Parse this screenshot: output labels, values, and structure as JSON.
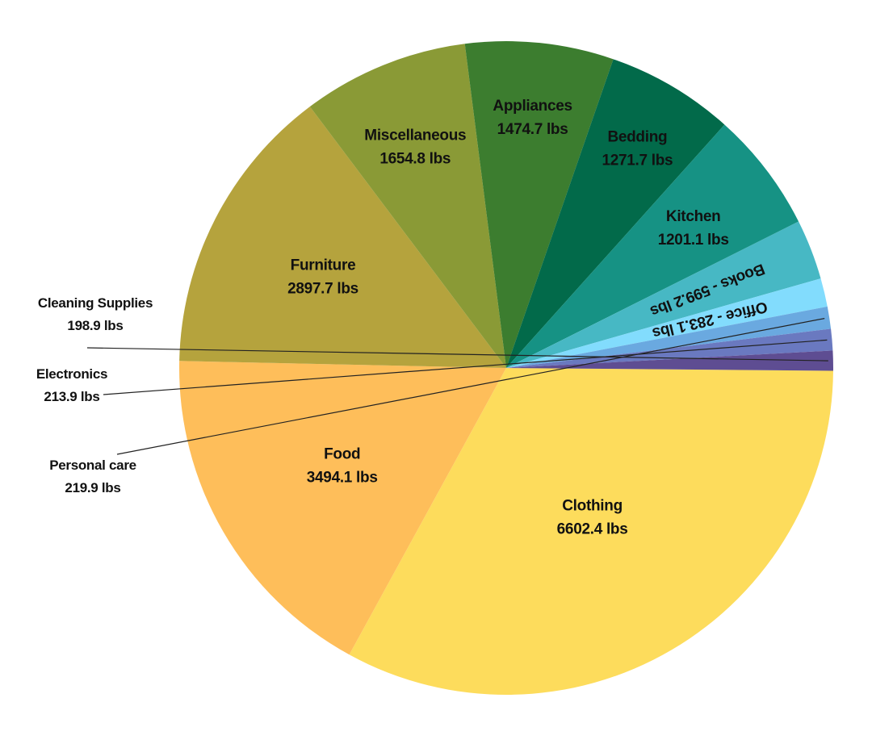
{
  "chart_data": {
    "type": "pie",
    "title": "",
    "unit": "lbs",
    "start_angle_deg": 90.5,
    "direction": "clockwise",
    "slices": [
      {
        "name": "Clothing",
        "value": 6602.4,
        "value_label": "6602.4 lbs",
        "color": "#FDDC5C",
        "label_style": "inside"
      },
      {
        "name": "Food",
        "value": 3494.1,
        "value_label": "3494.1 lbs",
        "color": "#FEBE5A",
        "label_style": "inside"
      },
      {
        "name": "Furniture",
        "value": 2897.7,
        "value_label": "2897.7 lbs",
        "color": "#B5A33D",
        "label_style": "inside"
      },
      {
        "name": "Miscellaneous",
        "value": 1654.8,
        "value_label": "1654.8 lbs",
        "color": "#8A9A36",
        "label_style": "inside"
      },
      {
        "name": "Appliances",
        "value": 1474.7,
        "value_label": "1474.7 lbs",
        "color": "#3C7D2F",
        "label_style": "inside"
      },
      {
        "name": "Bedding",
        "value": 1271.7,
        "value_label": "1271.7 lbs",
        "color": "#026A4A",
        "label_style": "inside"
      },
      {
        "name": "Kitchen",
        "value": 1201.1,
        "value_label": "1201.1 lbs",
        "color": "#169284",
        "label_style": "inside"
      },
      {
        "name": "Books",
        "value": 599.2,
        "value_label": "Books - 599.2 lbs",
        "color": "#47B8C4",
        "label_style": "rotated"
      },
      {
        "name": "Office",
        "value": 283.1,
        "value_label": "Office - 283.1 lbs",
        "color": "#82DCFD",
        "label_style": "rotated"
      },
      {
        "name": "Personal care",
        "value": 219.9,
        "value_label": "219.9 lbs",
        "color": "#6AA9E0",
        "label_style": "outside"
      },
      {
        "name": "Electronics",
        "value": 213.9,
        "value_label": "213.9 lbs",
        "color": "#6A79C0",
        "label_style": "outside"
      },
      {
        "name": "Cleaning Supplies",
        "value": 198.9,
        "value_label": "198.9 lbs",
        "color": "#5E4D92",
        "label_style": "outside"
      }
    ]
  }
}
